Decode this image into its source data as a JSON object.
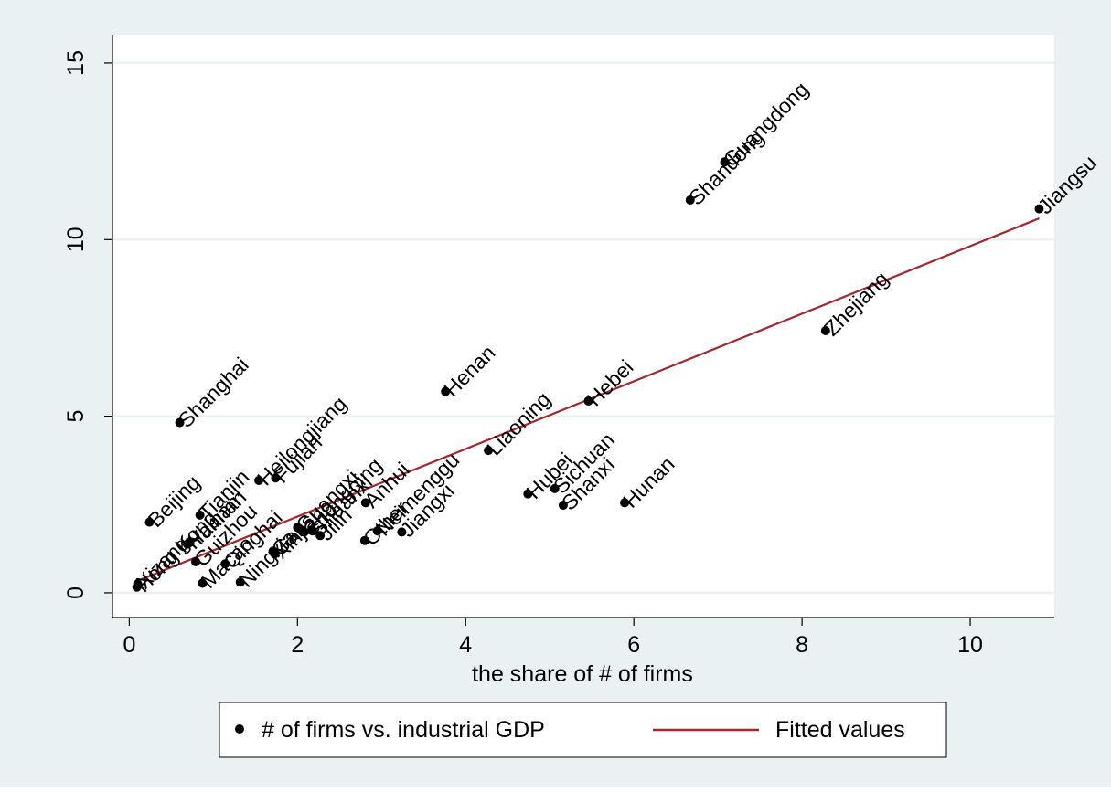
{
  "chart_data": {
    "type": "scatter",
    "title": "",
    "xlabel": "the share of # of firms",
    "ylabel": "",
    "xlim": [
      -0.2,
      11.0
    ],
    "ylim": [
      -0.7,
      15.8
    ],
    "xticks": [
      0,
      2,
      4,
      6,
      8,
      10
    ],
    "yticks": [
      0,
      5,
      10,
      15
    ],
    "grid": true,
    "legend_position": "bottom",
    "colors": {
      "points": "#000000",
      "fit": "#a0292e",
      "plot_bg": "#ffffff",
      "outer_bg": "#eaf1f3",
      "grid": "#eaf1f3"
    },
    "series": [
      {
        "name": "# of firms vs. industrial GDP",
        "points": [
          {
            "label": "Guangdong",
            "x": 7.08,
            "y": 12.2
          },
          {
            "label": "Shandong",
            "x": 6.67,
            "y": 11.12
          },
          {
            "label": "Jiangsu",
            "x": 10.82,
            "y": 10.87
          },
          {
            "label": "Zhejiang",
            "x": 8.28,
            "y": 7.42
          },
          {
            "label": "Henan",
            "x": 3.76,
            "y": 5.7
          },
          {
            "label": "Hebei",
            "x": 5.46,
            "y": 5.43
          },
          {
            "label": "Shanghai",
            "x": 0.6,
            "y": 4.82
          },
          {
            "label": "Liaoning",
            "x": 4.27,
            "y": 4.03
          },
          {
            "label": "Heilongjiang",
            "x": 1.54,
            "y": 3.18
          },
          {
            "label": "Fujian",
            "x": 1.74,
            "y": 3.25
          },
          {
            "label": "Hubei",
            "x": 4.74,
            "y": 2.8
          },
          {
            "label": "Sichuan",
            "x": 5.06,
            "y": 2.95
          },
          {
            "label": "Hunan",
            "x": 5.89,
            "y": 2.55
          },
          {
            "label": "Shanxi",
            "x": 5.16,
            "y": 2.48
          },
          {
            "label": "Anhui",
            "x": 2.81,
            "y": 2.55
          },
          {
            "label": "Tianjin",
            "x": 0.84,
            "y": 2.2
          },
          {
            "label": "Beijing",
            "x": 0.24,
            "y": 2.0
          },
          {
            "label": "Guangxi",
            "x": 2.0,
            "y": 1.85
          },
          {
            "label": "Shaanxi",
            "x": 2.18,
            "y": 1.75
          },
          {
            "label": "Chongqing",
            "x": 2.08,
            "y": 1.72
          },
          {
            "label": "Neimenggu",
            "x": 2.95,
            "y": 1.75
          },
          {
            "label": "Jiangxi",
            "x": 3.24,
            "y": 1.72
          },
          {
            "label": "Jilin",
            "x": 2.27,
            "y": 1.62
          },
          {
            "label": "Other",
            "x": 2.8,
            "y": 1.48
          },
          {
            "label": "Yunnan",
            "x": 0.72,
            "y": 1.42
          },
          {
            "label": "Guizhou",
            "x": 0.79,
            "y": 0.88
          },
          {
            "label": "Gansu",
            "x": 1.71,
            "y": 1.18
          },
          {
            "label": "Xinjiang",
            "x": 1.73,
            "y": 1.1
          },
          {
            "label": "Hainan",
            "x": 0.69,
            "y": 1.38
          },
          {
            "label": "Xizang",
            "x": 0.1,
            "y": 0.25
          },
          {
            "label": "Qinghai",
            "x": 1.14,
            "y": 0.82
          },
          {
            "label": "Ningxia",
            "x": 1.32,
            "y": 0.3
          },
          {
            "label": "Macao",
            "x": 0.87,
            "y": 0.27
          },
          {
            "label": "Hong Kong",
            "x": 0.09,
            "y": 0.16
          }
        ]
      },
      {
        "name": "Fitted values",
        "type": "line",
        "x": [
          0.09,
          10.82
        ],
        "y": [
          0.33,
          10.6
        ]
      }
    ]
  }
}
